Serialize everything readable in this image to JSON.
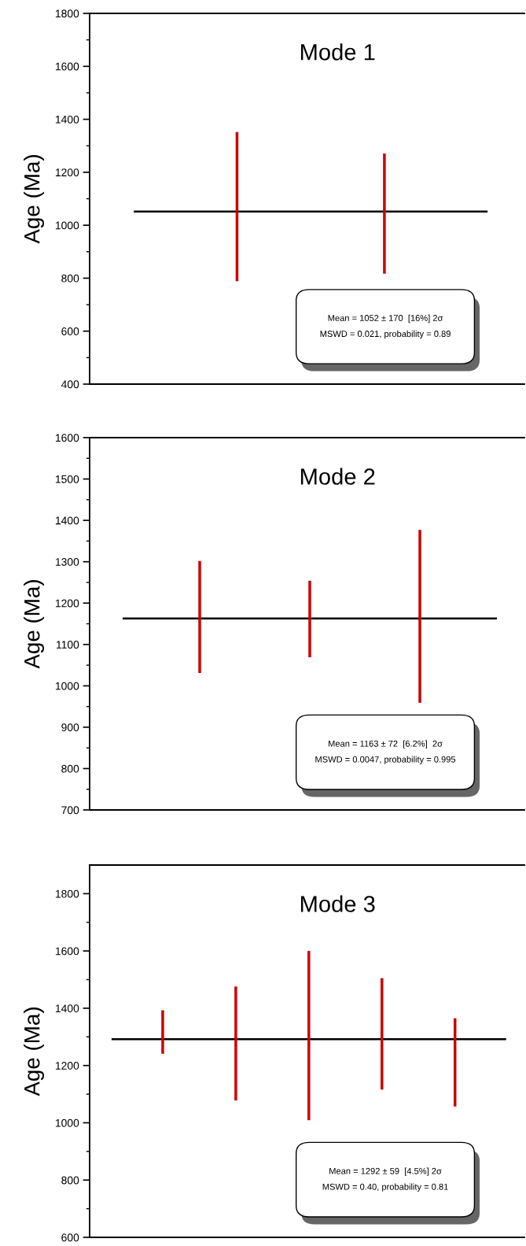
{
  "chart_data": [
    {
      "type": "bar",
      "title": "Mode 1",
      "ylabel": "Age (Ma)",
      "categories": [
        null,
        null
      ],
      "base": [
        789,
        817
      ],
      "values": [
        563,
        454
      ],
      "color": "#cc0000",
      "tick_labels": "y",
      "ylim": [
        400,
        1800
      ],
      "yticks": [
        400,
        {
          "value": 500,
          "label": null
        },
        600,
        {
          "value": 700,
          "label": null
        },
        800,
        {
          "value": 900,
          "label": null
        },
        1000,
        {
          "value": 1100,
          "label": null
        },
        1200,
        {
          "value": 1300,
          "label": null
        },
        1400,
        {
          "value": 1500,
          "label": null
        },
        1600,
        {
          "value": 1700,
          "label": null
        },
        1800
      ],
      "ref_lines": [
        {
          "axis": "y",
          "value": 1052,
          "color": "#000000"
        }
      ],
      "annotations": [
        "Mean = 1052 ± 170  [16%] 2σ",
        "MSWD = 0.021, probability = 0.89"
      ]
    },
    {
      "type": "bar",
      "title": "Mode 2",
      "ylabel": "Age (Ma)",
      "categories": [
        null,
        null,
        null
      ],
      "base": [
        1031,
        1069,
        959
      ],
      "values": [
        271,
        185,
        418
      ],
      "color": "#cc0000",
      "tick_labels": "y",
      "ylim": [
        700,
        1600
      ],
      "yticks": [
        700,
        {
          "value": 750,
          "label": null
        },
        800,
        {
          "value": 850,
          "label": null
        },
        900,
        {
          "value": 950,
          "label": null
        },
        1000,
        {
          "value": 1050,
          "label": null
        },
        1100,
        {
          "value": 1150,
          "label": null
        },
        1200,
        {
          "value": 1250,
          "label": null
        },
        1300,
        {
          "value": 1350,
          "label": null
        },
        1400,
        {
          "value": 1450,
          "label": null
        },
        1500,
        {
          "value": 1550,
          "label": null
        },
        1600
      ],
      "ref_lines": [
        {
          "axis": "y",
          "value": 1163,
          "color": "#000000"
        }
      ],
      "annotations": [
        "Mean = 1163 ± 72  [6.2%]  2σ",
        "MSWD = 0.0047, probability = 0.995"
      ]
    },
    {
      "type": "bar",
      "title": "Mode 3",
      "ylabel": "Age (Ma)",
      "categories": [
        null,
        null,
        null,
        null,
        null
      ],
      "base": [
        1241,
        1078,
        1009,
        1116,
        1057
      ],
      "values": [
        152,
        398,
        591,
        389,
        308
      ],
      "color": "#cc0000",
      "tick_labels": "y",
      "ylim": [
        600,
        1900
      ],
      "yticks": [
        600,
        {
          "value": 700,
          "label": null
        },
        800,
        {
          "value": 900,
          "label": null
        },
        1000,
        {
          "value": 1100,
          "label": null
        },
        1200,
        {
          "value": 1300,
          "label": null
        },
        1400,
        {
          "value": 1500,
          "label": null
        },
        1600,
        {
          "value": 1700,
          "label": null
        },
        1800
      ],
      "ref_lines": [
        {
          "axis": "y",
          "value": 1292,
          "color": "#000000"
        }
      ],
      "annotations": [
        "Mean = 1292 ± 59  [4.5%] 2σ",
        "MSWD = 0.40, probability = 0.81"
      ]
    }
  ]
}
